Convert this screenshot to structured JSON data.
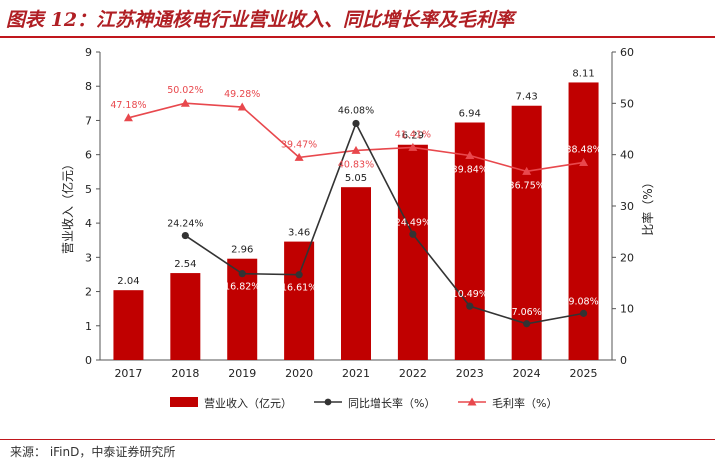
{
  "title": "图表 12：江苏神通核电行业营业收入、同比增长率及毛利率",
  "source": "来源：  iFinD，中泰证券研究所",
  "colors": {
    "bar": "#c00000",
    "growth_line": "#333333",
    "margin_line": "#e8484d",
    "title": "#b01f24"
  },
  "chart_data": {
    "type": "bar",
    "categories": [
      "2017",
      "2018",
      "2019",
      "2020",
      "2021",
      "2022",
      "2023",
      "2024",
      "2025"
    ],
    "series": [
      {
        "name": "营业收入（亿元）",
        "type": "bar",
        "axis": "left",
        "values": [
          2.04,
          2.54,
          2.96,
          3.46,
          5.05,
          6.29,
          6.94,
          7.43,
          8.11
        ],
        "labels": [
          "2.04",
          "2.54",
          "2.96",
          "3.46",
          "5.05",
          "6.29",
          "6.94",
          "7.43",
          "8.11"
        ]
      },
      {
        "name": "同比增长率（%）",
        "type": "line",
        "axis": "right",
        "values": [
          null,
          24.24,
          16.82,
          16.61,
          46.08,
          24.49,
          10.49,
          7.06,
          9.08
        ],
        "labels": [
          "",
          "24.24%",
          "16.82%",
          "16.61%",
          "46.08%",
          "24.49%",
          "10.49%",
          "7.06%",
          "9.08%"
        ]
      },
      {
        "name": "毛利率（%）",
        "type": "line",
        "axis": "right",
        "values": [
          47.18,
          50.02,
          49.28,
          39.47,
          40.83,
          41.41,
          39.84,
          36.75,
          38.48
        ],
        "labels": [
          "47.18%",
          "50.02%",
          "49.28%",
          "39.47%",
          "40.83%",
          "41.41%",
          "39.84%",
          "36.75%",
          "38.48%"
        ]
      }
    ],
    "ylabel": "营业收入（亿元）",
    "y2label": "比率（%）",
    "ylim": [
      0,
      9
    ],
    "y2lim": [
      0,
      60
    ],
    "yticks": [
      "0",
      "1",
      "2",
      "3",
      "4",
      "5",
      "6",
      "7",
      "8",
      "9"
    ],
    "y2ticks": [
      "0",
      "10",
      "20",
      "30",
      "40",
      "50",
      "60"
    ],
    "grid": false,
    "legend": "bottom"
  }
}
